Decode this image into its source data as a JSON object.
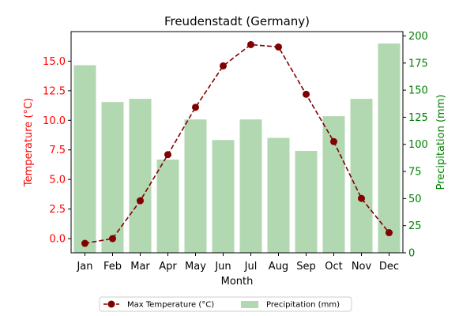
{
  "chart_data": {
    "type": "bar+line",
    "title": "Freudenstadt (Germany)",
    "xlabel": "Month",
    "categories": [
      "Jan",
      "Feb",
      "Mar",
      "Apr",
      "May",
      "Jun",
      "Jul",
      "Aug",
      "Sep",
      "Oct",
      "Nov",
      "Dec"
    ],
    "left_axis": {
      "label": "Temperature (°C)",
      "color": "#ff0000",
      "ylim": [
        -1.2,
        17.5
      ],
      "ticks": [
        "0.0",
        "2.5",
        "5.0",
        "7.5",
        "10.0",
        "12.5",
        "15.0"
      ]
    },
    "right_axis": {
      "label": "Precipitation (mm)",
      "color": "#008000",
      "ylim": [
        0,
        204
      ],
      "ticks": [
        "0",
        "25",
        "50",
        "75",
        "100",
        "125",
        "150",
        "175",
        "200"
      ]
    },
    "series": [
      {
        "name": "Max Temperature (°C)",
        "kind": "line",
        "axis": "left",
        "color": "#800000",
        "style": "dashed",
        "marker": "circle",
        "values": [
          -0.4,
          0.0,
          3.2,
          7.1,
          11.1,
          14.6,
          16.4,
          16.2,
          12.2,
          8.2,
          3.4,
          0.5
        ]
      },
      {
        "name": "Precipitation (mm)",
        "kind": "bar",
        "axis": "right",
        "color": "#b2d8b2",
        "values": [
          173,
          139,
          142,
          86,
          123,
          104,
          123,
          106,
          94,
          126,
          142,
          193
        ]
      }
    ],
    "legend": {
      "placement": "bottom-center",
      "columns": 2
    },
    "grid": false
  }
}
